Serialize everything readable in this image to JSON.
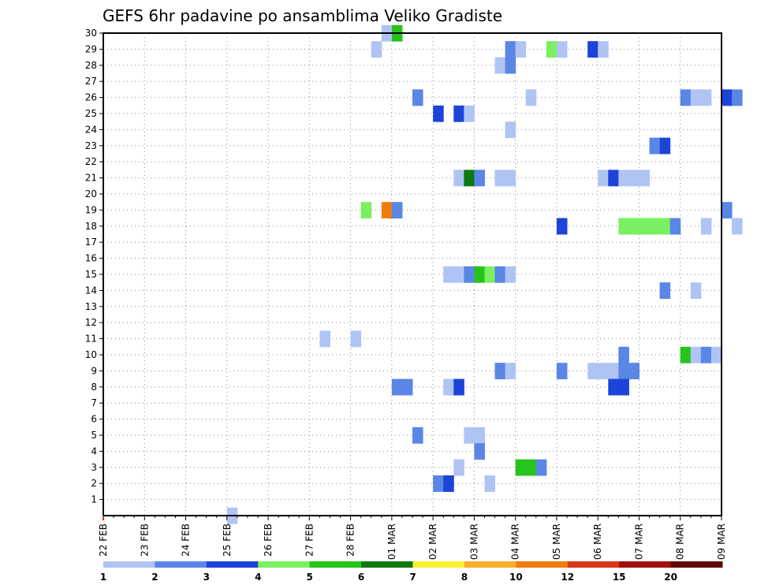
{
  "chart_data": {
    "type": "heatmap",
    "title": "GEFS 6hr padavine po ansamblima Veliko Gradiste",
    "xlabel": "",
    "ylabel": "",
    "x_ticks": [
      "22 FEB",
      "23 FEB",
      "24 FEB",
      "25 FEB",
      "26 FEB",
      "27 FEB",
      "28 FEB",
      "01 MAR",
      "02 MAR",
      "03 MAR",
      "04 MAR",
      "05 MAR",
      "06 MAR",
      "07 MAR",
      "08 MAR",
      "09 MAR"
    ],
    "y_ticks": [
      "1",
      "2",
      "3",
      "4",
      "5",
      "6",
      "7",
      "8",
      "9",
      "10",
      "11",
      "12",
      "13",
      "14",
      "15",
      "16",
      "17",
      "18",
      "19",
      "20",
      "21",
      "22",
      "23",
      "24",
      "25",
      "26",
      "27",
      "28",
      "29",
      "30"
    ],
    "ylim": [
      0,
      30
    ],
    "steps_per_day": 4,
    "grid": true,
    "colorbar": {
      "labels": [
        "1",
        "2",
        "3",
        "4",
        "5",
        "6",
        "7",
        "8",
        "10",
        "12",
        "15",
        "20"
      ],
      "colors": [
        "#b0c4f4",
        "#5a86e6",
        "#1c44d8",
        "#7af060",
        "#26c41a",
        "#0d780d",
        "#f8f030",
        "#f8b028",
        "#f07c10",
        "#d83818",
        "#a01010",
        "#600808"
      ]
    },
    "cells": [
      {
        "member": 0,
        "step": 12,
        "color": 1
      },
      {
        "member": 30,
        "step": 27,
        "color": 1
      },
      {
        "member": 30,
        "step": 28,
        "color": 5
      },
      {
        "member": 29,
        "step": 26,
        "color": 1
      },
      {
        "member": 29,
        "step": 39,
        "color": 2
      },
      {
        "member": 29,
        "step": 40,
        "color": 1
      },
      {
        "member": 29,
        "step": 43,
        "color": 4
      },
      {
        "member": 29,
        "step": 44,
        "color": 1
      },
      {
        "member": 29,
        "step": 47,
        "color": 3
      },
      {
        "member": 29,
        "step": 48,
        "color": 1
      },
      {
        "member": 28,
        "step": 38,
        "color": 1
      },
      {
        "member": 28,
        "step": 39,
        "color": 2
      },
      {
        "member": 26,
        "step": 30,
        "color": 2
      },
      {
        "member": 26,
        "step": 41,
        "color": 1
      },
      {
        "member": 26,
        "step": 56,
        "color": 2
      },
      {
        "member": 26,
        "step": 57,
        "color": 1
      },
      {
        "member": 26,
        "step": 58,
        "color": 1
      },
      {
        "member": 26,
        "step": 60,
        "color": 3
      },
      {
        "member": 26,
        "step": 61,
        "color": 2
      },
      {
        "member": 25,
        "step": 32,
        "color": 3
      },
      {
        "member": 25,
        "step": 34,
        "color": 3
      },
      {
        "member": 25,
        "step": 35,
        "color": 1
      },
      {
        "member": 24,
        "step": 39,
        "color": 1
      },
      {
        "member": 23,
        "step": 53,
        "color": 2
      },
      {
        "member": 23,
        "step": 54,
        "color": 3
      },
      {
        "member": 21,
        "step": 34,
        "color": 1
      },
      {
        "member": 21,
        "step": 35,
        "color": 6
      },
      {
        "member": 21,
        "step": 36,
        "color": 2
      },
      {
        "member": 21,
        "step": 38,
        "color": 1
      },
      {
        "member": 21,
        "step": 39,
        "color": 1
      },
      {
        "member": 21,
        "step": 48,
        "color": 1
      },
      {
        "member": 21,
        "step": 49,
        "color": 3
      },
      {
        "member": 21,
        "step": 50,
        "color": 1
      },
      {
        "member": 21,
        "step": 51,
        "color": 1
      },
      {
        "member": 21,
        "step": 52,
        "color": 1
      },
      {
        "member": 19,
        "step": 25,
        "color": 4
      },
      {
        "member": 19,
        "step": 27,
        "color": 9
      },
      {
        "member": 19,
        "step": 28,
        "color": 2
      },
      {
        "member": 19,
        "step": 60,
        "color": 2
      },
      {
        "member": 18,
        "step": 44,
        "color": 3
      },
      {
        "member": 18,
        "step": 50,
        "color": 4
      },
      {
        "member": 18,
        "step": 51,
        "color": 4
      },
      {
        "member": 18,
        "step": 52,
        "color": 4
      },
      {
        "member": 18,
        "step": 53,
        "color": 4
      },
      {
        "member": 18,
        "step": 54,
        "color": 4
      },
      {
        "member": 18,
        "step": 55,
        "color": 2
      },
      {
        "member": 18,
        "step": 58,
        "color": 1
      },
      {
        "member": 18,
        "step": 61,
        "color": 1
      },
      {
        "member": 15,
        "step": 33,
        "color": 1
      },
      {
        "member": 15,
        "step": 34,
        "color": 1
      },
      {
        "member": 15,
        "step": 35,
        "color": 2
      },
      {
        "member": 15,
        "step": 36,
        "color": 5
      },
      {
        "member": 15,
        "step": 37,
        "color": 4
      },
      {
        "member": 15,
        "step": 38,
        "color": 2
      },
      {
        "member": 15,
        "step": 39,
        "color": 1
      },
      {
        "member": 14,
        "step": 54,
        "color": 2
      },
      {
        "member": 14,
        "step": 57,
        "color": 1
      },
      {
        "member": 11,
        "step": 21,
        "color": 1
      },
      {
        "member": 11,
        "step": 24,
        "color": 1
      },
      {
        "member": 10,
        "step": 50,
        "color": 2
      },
      {
        "member": 10,
        "step": 56,
        "color": 5
      },
      {
        "member": 10,
        "step": 57,
        "color": 1
      },
      {
        "member": 10,
        "step": 58,
        "color": 2
      },
      {
        "member": 10,
        "step": 59,
        "color": 1
      },
      {
        "member": 9,
        "step": 38,
        "color": 2
      },
      {
        "member": 9,
        "step": 39,
        "color": 1
      },
      {
        "member": 9,
        "step": 44,
        "color": 2
      },
      {
        "member": 9,
        "step": 47,
        "color": 1
      },
      {
        "member": 9,
        "step": 48,
        "color": 1
      },
      {
        "member": 9,
        "step": 49,
        "color": 1
      },
      {
        "member": 9,
        "step": 50,
        "color": 2
      },
      {
        "member": 9,
        "step": 51,
        "color": 2
      },
      {
        "member": 8,
        "step": 28,
        "color": 2
      },
      {
        "member": 8,
        "step": 29,
        "color": 2
      },
      {
        "member": 8,
        "step": 33,
        "color": 1
      },
      {
        "member": 8,
        "step": 34,
        "color": 3
      },
      {
        "member": 8,
        "step": 49,
        "color": 3
      },
      {
        "member": 8,
        "step": 50,
        "color": 3
      },
      {
        "member": 5,
        "step": 30,
        "color": 2
      },
      {
        "member": 5,
        "step": 35,
        "color": 1
      },
      {
        "member": 5,
        "step": 36,
        "color": 1
      },
      {
        "member": 4,
        "step": 36,
        "color": 2
      },
      {
        "member": 3,
        "step": 34,
        "color": 1
      },
      {
        "member": 3,
        "step": 40,
        "color": 5
      },
      {
        "member": 3,
        "step": 41,
        "color": 5
      },
      {
        "member": 3,
        "step": 42,
        "color": 2
      },
      {
        "member": 2,
        "step": 32,
        "color": 2
      },
      {
        "member": 2,
        "step": 33,
        "color": 3
      },
      {
        "member": 2,
        "step": 37,
        "color": 1
      }
    ]
  }
}
